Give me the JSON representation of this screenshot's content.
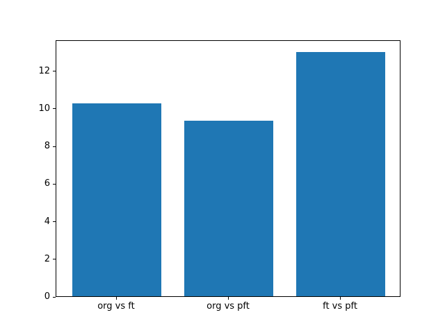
{
  "chart_data": {
    "type": "bar",
    "categories": [
      "org vs ft",
      "org vs pft",
      "ft vs pft"
    ],
    "values": [
      10.25,
      9.35,
      13.0
    ],
    "yticks": [
      0,
      2,
      4,
      6,
      8,
      10,
      12
    ],
    "ylim": [
      0,
      13.65
    ],
    "bar_color": "#1f77b4",
    "background_color": "#ffffff",
    "spine_color": "#000000",
    "grid": false,
    "legend_position": "none",
    "bar_width_fraction": 0.8
  }
}
